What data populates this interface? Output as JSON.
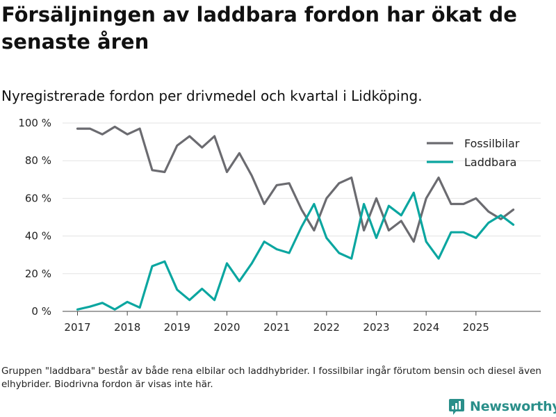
{
  "title": "Försäljningen av laddbara fordon har ökat de senaste åren",
  "subtitle": "Nyregistrerade fordon per drivmedel och kvartal i Lidköping.",
  "footnote": "Gruppen \"laddbara\" består av både rena elbilar och laddhybrider. I fossilbilar ingår förutom bensin och diesel även elhybrider. Biodrivna fordon är visas inte här.",
  "brand": "Newsworthy",
  "chart_data": {
    "type": "line",
    "title": "Försäljningen av laddbara fordon har ökat de senaste åren",
    "subtitle": "Nyregistrerade fordon per drivmedel och kvartal i Lidköping.",
    "xlabel": "",
    "ylabel": "",
    "xlim": [
      2016.7,
      2026.3
    ],
    "ylim": [
      0,
      100
    ],
    "y_ticks": [
      0,
      20,
      40,
      60,
      80,
      100
    ],
    "y_tick_labels": [
      "0 %",
      "20 %",
      "40 %",
      "60 %",
      "80 %",
      "100 %"
    ],
    "x_ticks": [
      2017,
      2018,
      2019,
      2020,
      2021,
      2022,
      2023,
      2024,
      2025
    ],
    "x_tick_labels": [
      "2017",
      "2018",
      "2019",
      "2020",
      "2021",
      "2022",
      "2023",
      "2024",
      "2025"
    ],
    "grid": true,
    "legend_position": "top-right",
    "x": [
      2017.0,
      2017.25,
      2017.5,
      2017.75,
      2018.0,
      2018.25,
      2018.5,
      2018.75,
      2019.0,
      2019.25,
      2019.5,
      2019.75,
      2020.0,
      2020.25,
      2020.5,
      2020.75,
      2021.0,
      2021.25,
      2021.5,
      2021.75,
      2022.0,
      2022.25,
      2022.5,
      2022.75,
      2023.0,
      2023.25,
      2023.5,
      2023.75,
      2024.0,
      2024.25,
      2024.5,
      2024.75,
      2025.0,
      2025.25,
      2025.5,
      2025.75
    ],
    "series": [
      {
        "name": "Fossilbilar",
        "color": "#6b6b70",
        "values": [
          97,
          97,
          94,
          98,
          94,
          97,
          75,
          74,
          88,
          93,
          87,
          93,
          74,
          84,
          72,
          57,
          67,
          68,
          54,
          43,
          60,
          68,
          71,
          43,
          60,
          43,
          48,
          37,
          60,
          71,
          57,
          57,
          60,
          53,
          49,
          54
        ]
      },
      {
        "name": "Laddbara",
        "color": "#0ba6a0",
        "values": [
          1,
          2.5,
          4.5,
          1,
          5,
          2,
          24,
          26.5,
          11.5,
          6,
          12,
          6,
          25.5,
          16,
          25.5,
          37,
          33,
          31,
          45,
          57,
          39,
          31,
          28,
          57,
          39,
          56,
          51,
          63,
          37,
          28,
          42,
          42,
          39,
          47,
          51,
          46
        ]
      }
    ]
  }
}
